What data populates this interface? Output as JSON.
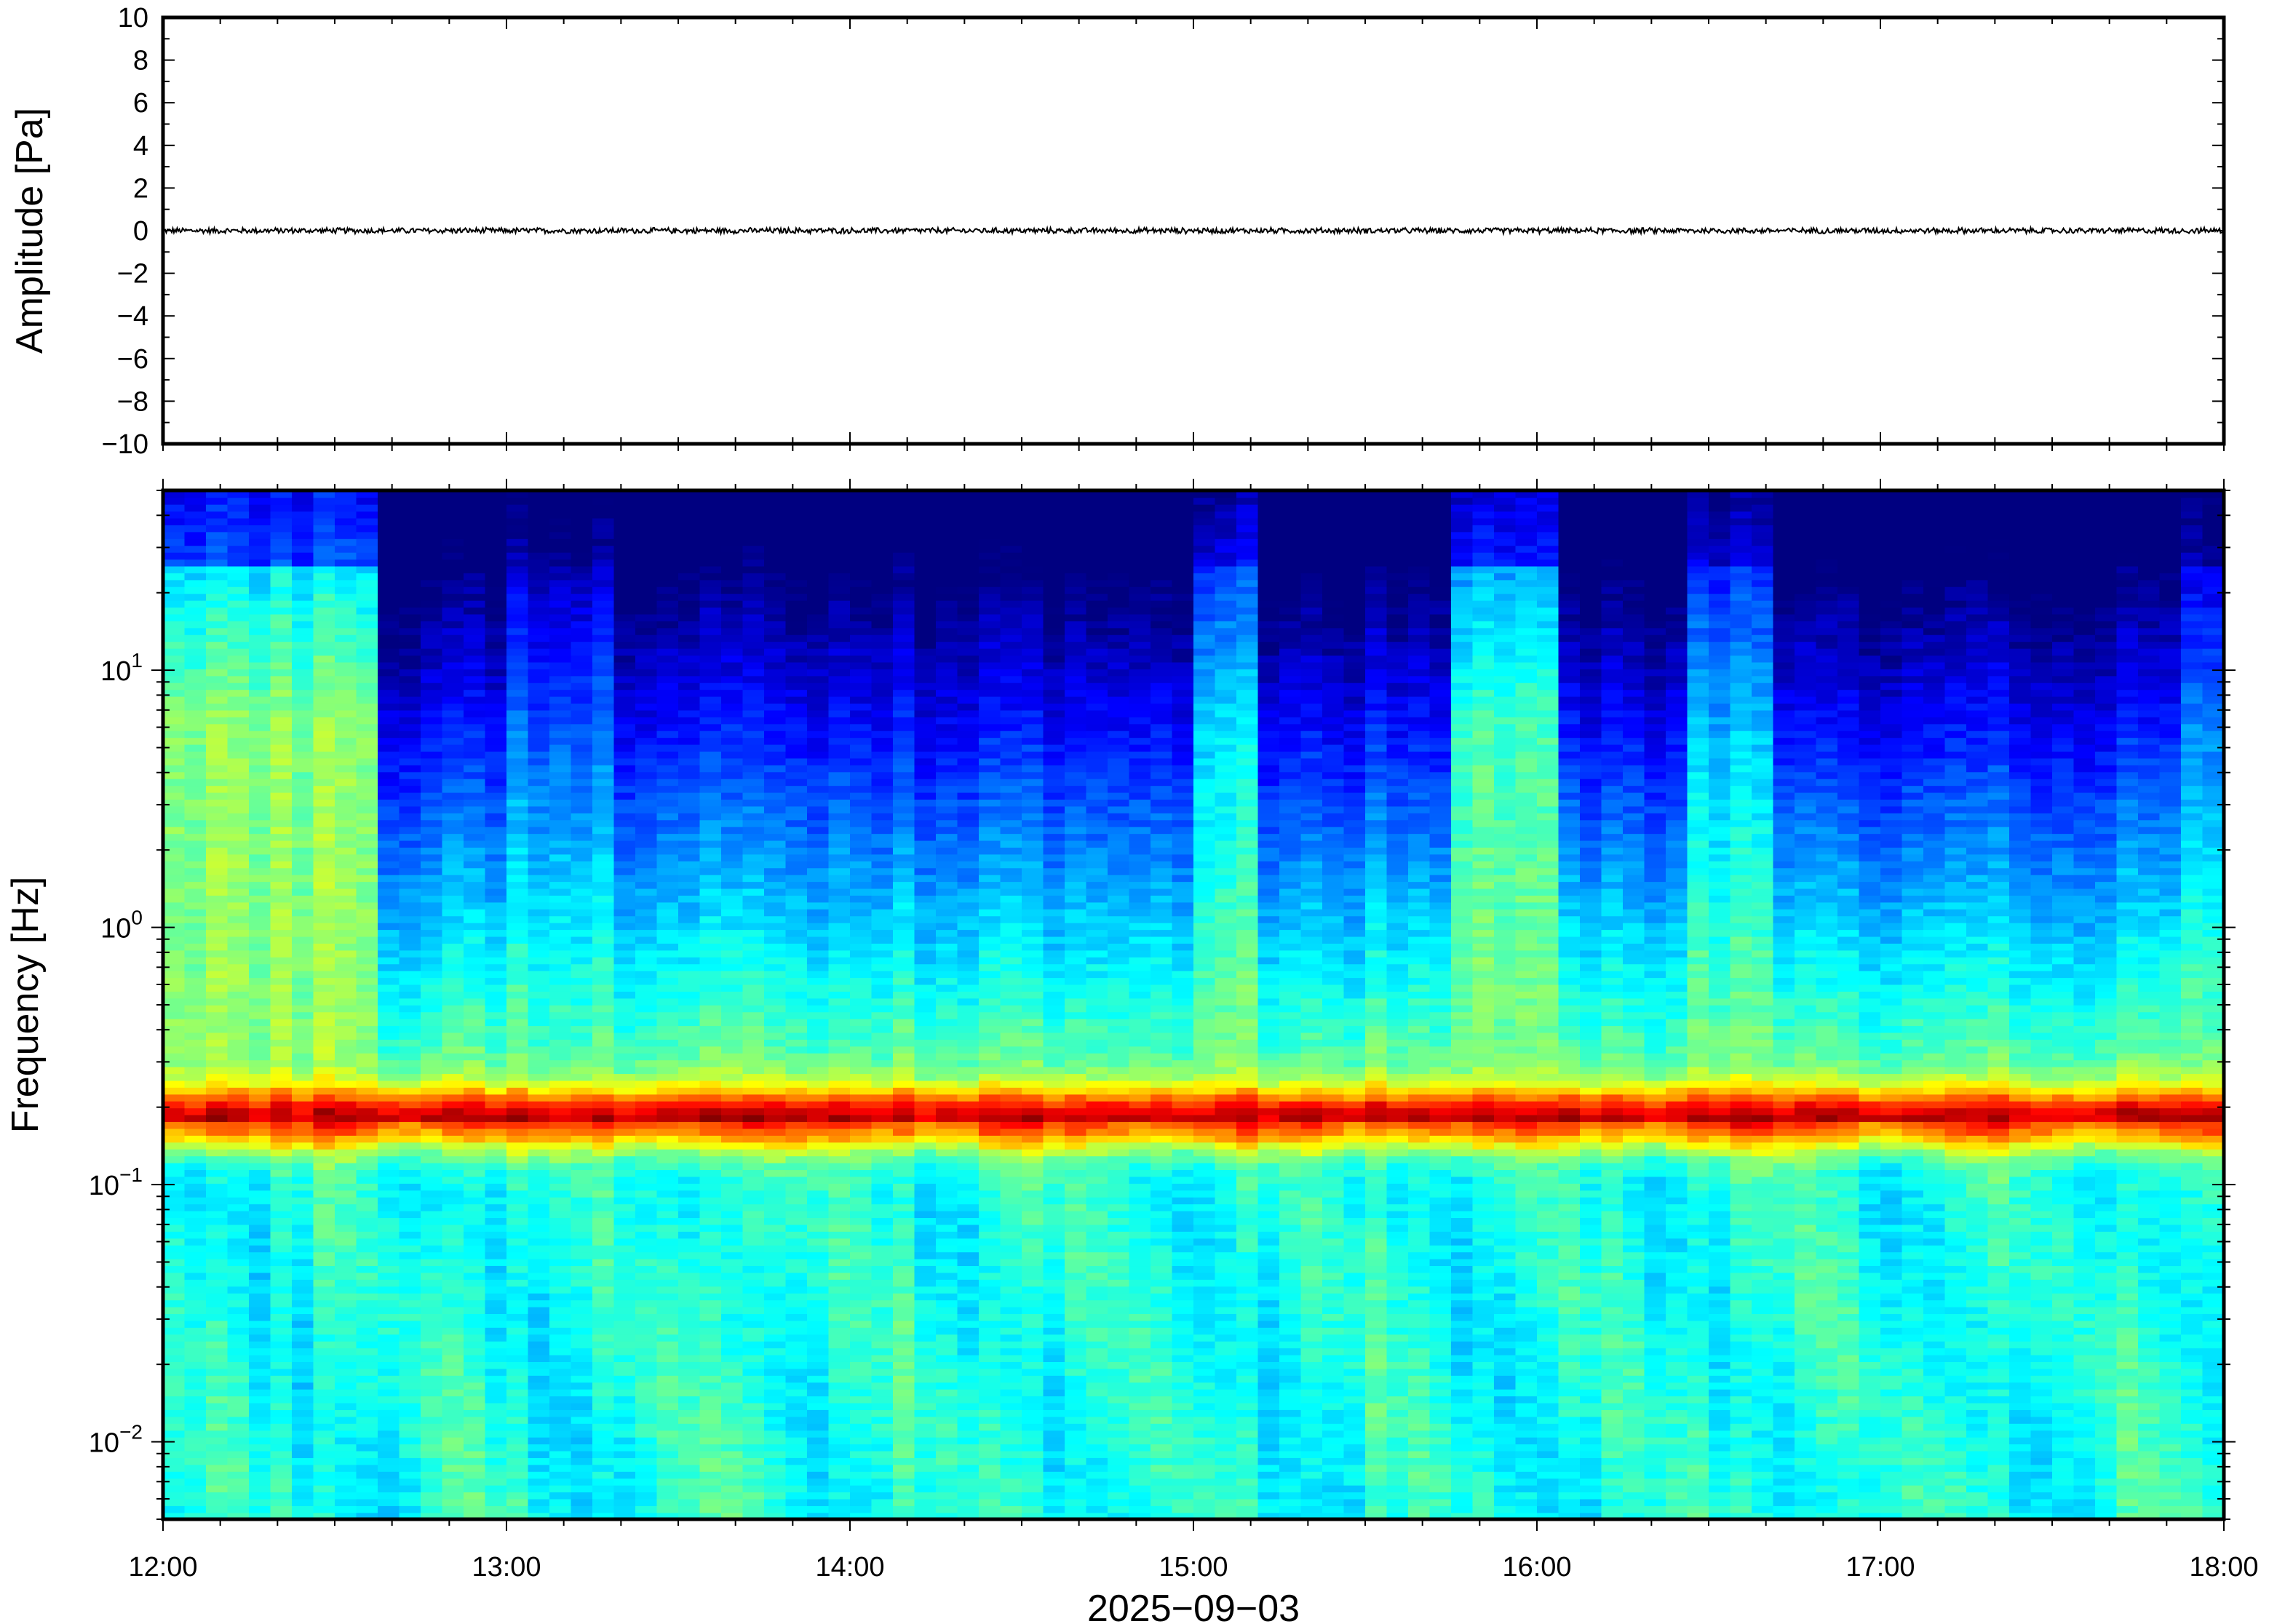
{
  "chart_data": [
    {
      "type": "line",
      "ylabel": "Amplitude [Pa]",
      "ylim": [
        -10,
        10
      ],
      "yticks": [
        "10",
        "8",
        "6",
        "4",
        "2",
        "0",
        "−2",
        "−4",
        "−6",
        "−8",
        "−10"
      ],
      "yticks_values": [
        10,
        8,
        6,
        4,
        2,
        0,
        -2,
        -4,
        -6,
        -8,
        -10
      ],
      "trace": {
        "mean": 0,
        "approx_peak_amplitude": 0.15,
        "color": "#000000"
      }
    },
    {
      "type": "heatmap",
      "ylabel": "Frequency [Hz]",
      "xlabel": "2025−09−03",
      "yscale": "log",
      "ylim": [
        0.005,
        50
      ],
      "yticks": [
        {
          "base": "10",
          "exp": "1",
          "value": 10
        },
        {
          "base": "10",
          "exp": "0",
          "value": 1
        },
        {
          "base": "10",
          "exp": "−1",
          "value": 0.1
        },
        {
          "base": "10",
          "exp": "−2",
          "value": 0.01
        }
      ],
      "xticks": [
        "12:00",
        "13:00",
        "14:00",
        "15:00",
        "16:00",
        "17:00",
        "18:00"
      ],
      "xlim": [
        "12:00",
        "18:00"
      ],
      "colormap": "jet",
      "dominant_band_hz": [
        0.15,
        0.22
      ],
      "high_energy_periods": [
        "12:00-12:37",
        "15:02-15:12",
        "15:47-16:05",
        "16:30-16:40"
      ]
    }
  ]
}
